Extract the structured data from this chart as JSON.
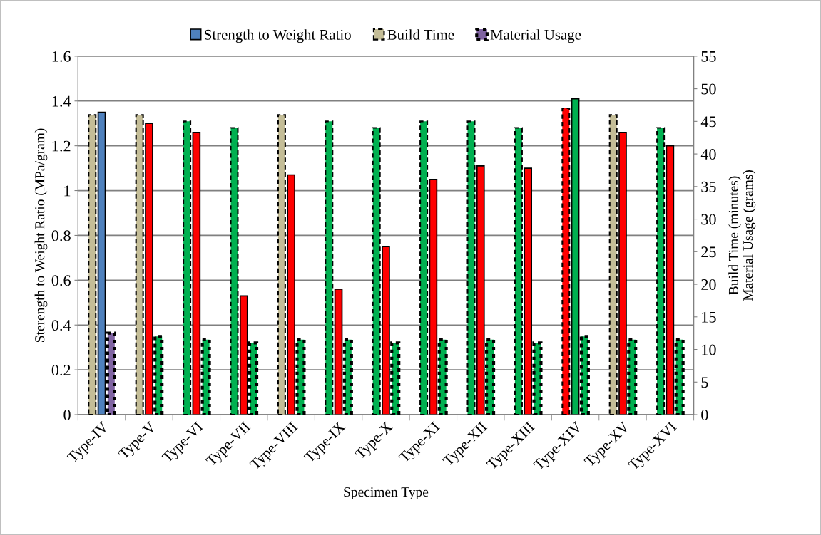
{
  "chart_data": {
    "type": "bar",
    "xlabel": "Specimen Type",
    "ylabel": "Sterength to Weight Ratio (MPa/gram)",
    "y2label": "Build Time (minutes)\nMaterial Usage (grams)",
    "categories": [
      "Type-IV",
      "Type-V",
      "Type-VI",
      "Type-VII",
      "Type-VIII",
      "Type-IX",
      "Type-X",
      "Type-XI",
      "Type-XII",
      "Type-XIII",
      "Type-XIV",
      "Type-XV",
      "Type-XVI"
    ],
    "series": [
      {
        "name": "Build Time",
        "axis": "y2",
        "line_style": "dashed",
        "color": "#c4bd97",
        "colors": [
          "#c4bd97",
          "#c4bd97",
          "#00b050",
          "#00b050",
          "#c4bd97",
          "#00b050",
          "#00b050",
          "#00b050",
          "#00b050",
          "#00b050",
          "#ff0000",
          "#c4bd97",
          "#00b050"
        ],
        "values": [
          46,
          46,
          45,
          44,
          46,
          45,
          44,
          45,
          45,
          44,
          47,
          46,
          44
        ]
      },
      {
        "name": "Strength to Weight Ratio",
        "line_style": "solid",
        "color": "#4f81bd",
        "colors": [
          "#4f81bd",
          "#ff0000",
          "#ff0000",
          "#ff0000",
          "#ff0000",
          "#ff0000",
          "#ff0000",
          "#ff0000",
          "#ff0000",
          "#ff0000",
          "#00b050",
          "#ff0000",
          "#ff0000"
        ],
        "values": [
          1.35,
          1.3,
          1.26,
          0.53,
          1.07,
          0.56,
          0.75,
          1.05,
          1.11,
          1.1,
          1.41,
          1.26,
          1.2
        ]
      },
      {
        "name": "Material Usage",
        "axis": "y2",
        "line_style": "dotted",
        "color": "#8064a2",
        "colors": [
          "#8064a2",
          "#00b050",
          "#00b050",
          "#00b050",
          "#00b050",
          "#00b050",
          "#00b050",
          "#00b050",
          "#00b050",
          "#00b050",
          "#00b050",
          "#00b050",
          "#00b050"
        ],
        "values": [
          12.5,
          12,
          11.5,
          11,
          11.5,
          11.5,
          11,
          11.5,
          11.5,
          11,
          12,
          11.5,
          11.5
        ]
      }
    ],
    "ylim": [
      0,
      1.6
    ],
    "yticks": [
      0,
      0.2,
      0.4,
      0.6,
      0.8,
      1,
      1.2,
      1.4,
      1.6
    ],
    "y2lim": [
      0,
      55
    ],
    "y2ticks": [
      0,
      5,
      10,
      15,
      20,
      25,
      30,
      35,
      40,
      45,
      50,
      55
    ],
    "grid": "y",
    "legend": "top"
  }
}
